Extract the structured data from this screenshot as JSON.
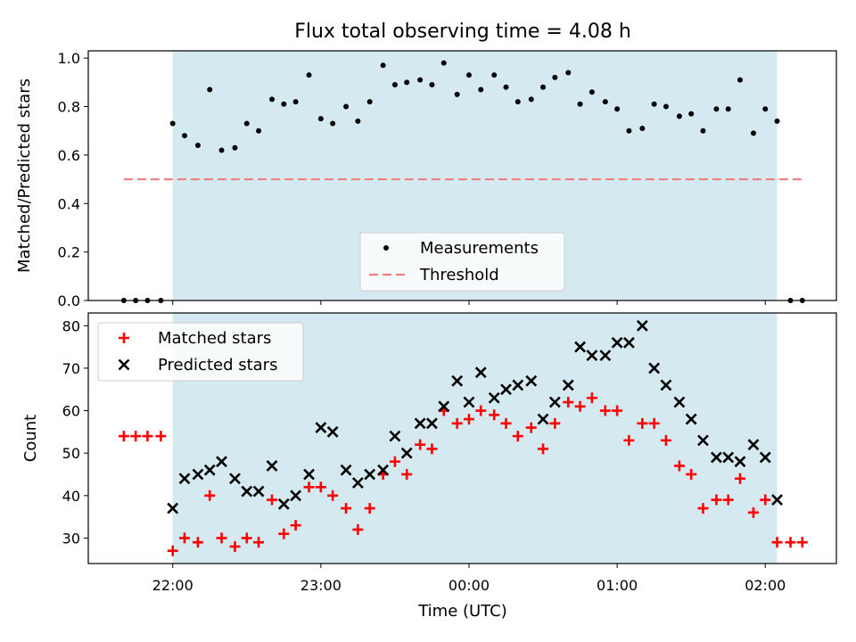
{
  "chart_data": {
    "type": "scatter",
    "title": "Flux total observing time = 4.08 h",
    "xlabel": "Time (UTC)",
    "x_tick_labels": [
      "22:00",
      "23:00",
      "00:00",
      "01:00",
      "02:00"
    ],
    "x_tick_hours": [
      22,
      23,
      24,
      25,
      26
    ],
    "xlim_hours": [
      21.43,
      26.48
    ],
    "observing_window_hours": [
      22.0,
      26.08
    ],
    "observing_window_color": "#d4eaf0",
    "panels": [
      {
        "ylabel": "Matched/Predicted stars",
        "ylim": [
          0,
          1.03
        ],
        "y_ticks": [
          0.0,
          0.2,
          0.4,
          0.6,
          0.8,
          1.0
        ],
        "y_tick_labels": [
          "0.0",
          "0.2",
          "0.4",
          "0.6",
          "0.8",
          "1.0"
        ],
        "legend_position": "lower-center",
        "series": [
          {
            "name": "Measurements",
            "marker": "dot",
            "color": "#000000",
            "x": [
              21.67,
              21.75,
              21.83,
              21.92,
              22.0,
              22.08,
              22.17,
              22.25,
              22.33,
              22.42,
              22.5,
              22.58,
              22.67,
              22.75,
              22.83,
              22.92,
              23.0,
              23.08,
              23.17,
              23.25,
              23.33,
              23.42,
              23.5,
              23.58,
              23.67,
              23.75,
              23.83,
              23.92,
              24.0,
              24.08,
              24.17,
              24.25,
              24.33,
              24.42,
              24.5,
              24.58,
              24.67,
              24.75,
              24.83,
              24.92,
              25.0,
              25.08,
              25.17,
              25.25,
              25.33,
              25.42,
              25.5,
              25.58,
              25.67,
              25.75,
              25.83,
              25.92,
              26.0,
              26.08,
              26.17,
              26.25
            ],
            "y": [
              0,
              0,
              0,
              0,
              0.73,
              0.68,
              0.64,
              0.87,
              0.62,
              0.63,
              0.73,
              0.7,
              0.83,
              0.81,
              0.82,
              0.93,
              0.75,
              0.73,
              0.8,
              0.74,
              0.82,
              0.97,
              0.89,
              0.9,
              0.91,
              0.89,
              0.98,
              0.85,
              0.93,
              0.87,
              0.93,
              0.88,
              0.82,
              0.83,
              0.88,
              0.92,
              0.94,
              0.81,
              0.86,
              0.82,
              0.79,
              0.7,
              0.71,
              0.81,
              0.8,
              0.76,
              0.77,
              0.7,
              0.79,
              0.79,
              0.91,
              0.69,
              0.79,
              0.74,
              0,
              0
            ]
          },
          {
            "name": "Threshold",
            "marker": "dashed-line",
            "color": "#f08080",
            "x": [
              21.67,
              26.25
            ],
            "y": [
              0.5,
              0.5
            ]
          }
        ]
      },
      {
        "ylabel": "Count",
        "ylim": [
          24,
          83
        ],
        "y_ticks": [
          30,
          40,
          50,
          60,
          70,
          80
        ],
        "y_tick_labels": [
          "30",
          "40",
          "50",
          "60",
          "70",
          "80"
        ],
        "legend_position": "upper-left",
        "series": [
          {
            "name": "Matched stars",
            "marker": "plus",
            "color": "#ff0000",
            "x": [
              21.67,
              21.75,
              21.83,
              21.92,
              22.0,
              22.08,
              22.17,
              22.25,
              22.33,
              22.42,
              22.5,
              22.58,
              22.67,
              22.75,
              22.83,
              22.92,
              23.0,
              23.08,
              23.17,
              23.25,
              23.33,
              23.42,
              23.5,
              23.58,
              23.67,
              23.75,
              23.83,
              23.92,
              24.0,
              24.08,
              24.17,
              24.25,
              24.33,
              24.42,
              24.5,
              24.58,
              24.67,
              24.75,
              24.83,
              24.92,
              25.0,
              25.08,
              25.17,
              25.25,
              25.33,
              25.42,
              25.5,
              25.58,
              25.67,
              25.75,
              25.83,
              25.92,
              26.0,
              26.08,
              26.17,
              26.25
            ],
            "y": [
              54,
              54,
              54,
              54,
              27,
              30,
              29,
              40,
              30,
              28,
              30,
              29,
              39,
              31,
              33,
              42,
              42,
              40,
              37,
              32,
              37,
              45,
              48,
              45,
              52,
              51,
              60,
              57,
              58,
              60,
              59,
              57,
              54,
              56,
              51,
              57,
              62,
              61,
              63,
              60,
              60,
              53,
              57,
              57,
              53,
              47,
              45,
              37,
              39,
              39,
              44,
              36,
              39,
              29,
              29,
              29
            ]
          },
          {
            "name": "Predicted stars",
            "marker": "x",
            "color": "#000000",
            "x": [
              22.0,
              22.08,
              22.17,
              22.25,
              22.33,
              22.42,
              22.5,
              22.58,
              22.67,
              22.75,
              22.83,
              22.92,
              23.0,
              23.08,
              23.17,
              23.25,
              23.33,
              23.42,
              23.5,
              23.58,
              23.67,
              23.75,
              23.83,
              23.92,
              24.0,
              24.08,
              24.17,
              24.25,
              24.33,
              24.42,
              24.5,
              24.58,
              24.67,
              24.75,
              24.83,
              24.92,
              25.0,
              25.08,
              25.17,
              25.25,
              25.33,
              25.42,
              25.5,
              25.58,
              25.67,
              25.75,
              25.83,
              25.92,
              26.0,
              26.08
            ],
            "y": [
              37,
              44,
              45,
              46,
              48,
              44,
              41,
              41,
              47,
              38,
              40,
              45,
              56,
              55,
              46,
              43,
              45,
              46,
              54,
              50,
              57,
              57,
              61,
              67,
              62,
              69,
              63,
              65,
              66,
              67,
              58,
              62,
              66,
              75,
              73,
              73,
              76,
              76,
              80,
              70,
              66,
              62,
              58,
              53,
              49,
              49,
              48,
              52,
              49,
              39
            ]
          }
        ]
      }
    ]
  }
}
